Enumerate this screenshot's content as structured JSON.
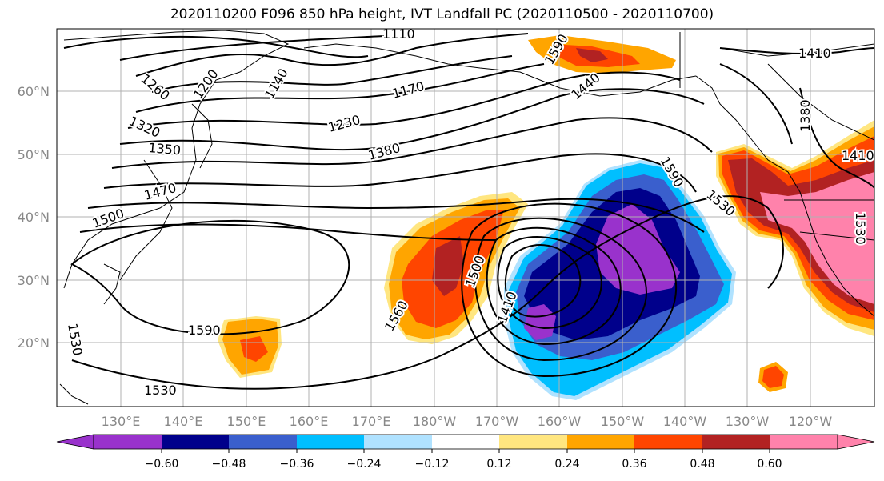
{
  "title": "2020110200 F096 850 hPa height, IVT Landfall PC (2020110500 - 2020110700)",
  "map": {
    "lon_ticks": [
      "130°E",
      "140°E",
      "150°E",
      "160°E",
      "170°E",
      "180°W",
      "170°W",
      "160°W",
      "150°W",
      "140°W",
      "130°W",
      "120°W"
    ],
    "lat_ticks": [
      "60°N",
      "50°N",
      "40°N",
      "30°N",
      "20°N"
    ],
    "contour_labels": [
      "1110",
      "1140",
      "1170",
      "1200",
      "1230",
      "1260",
      "1320",
      "1350",
      "1380",
      "1380",
      "1410",
      "1410",
      "1410",
      "1440",
      "1470",
      "1500",
      "1500",
      "1530",
      "1530",
      "1530",
      "1530",
      "1560",
      "1590",
      "1590",
      "1590"
    ]
  },
  "colorbar": {
    "labels": [
      "−0.60",
      "−0.48",
      "−0.36",
      "−0.24",
      "−0.12",
      "0.12",
      "0.24",
      "0.36",
      "0.48",
      "0.60"
    ],
    "colors": [
      "#9932cc",
      "#00008b",
      "#3a5fcd",
      "#00bfff",
      "#b0e2ff",
      "#ffffff",
      "#ffe680",
      "#ffa500",
      "#ff4500",
      "#b22222",
      "#ff82ab"
    ]
  }
}
